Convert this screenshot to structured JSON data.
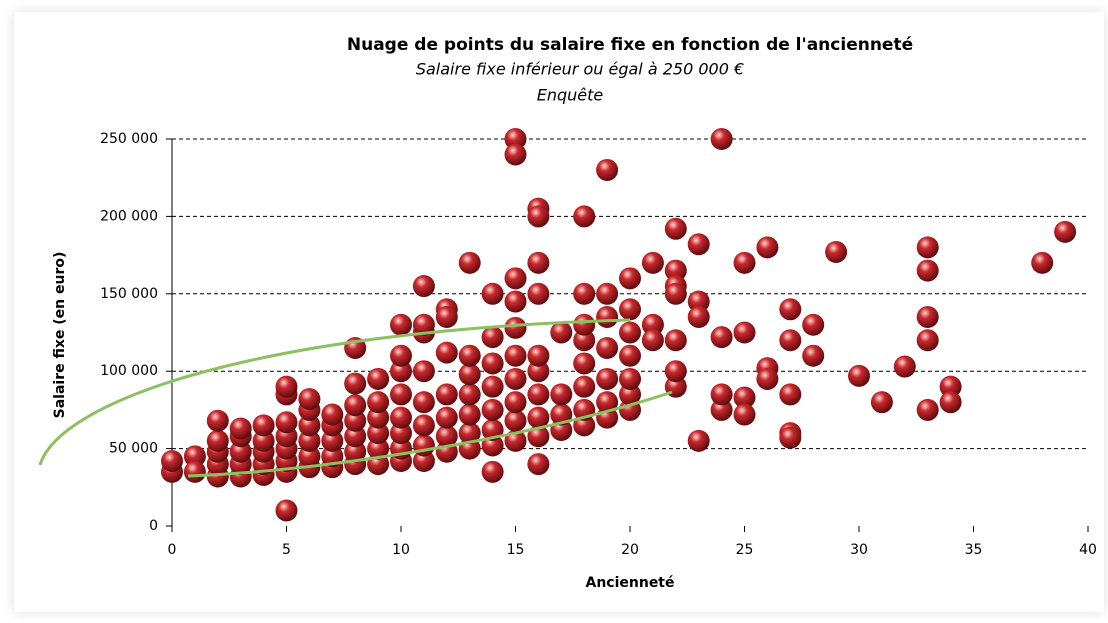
{
  "chart_data": {
    "type": "scatter",
    "title": "Nuage de points du salaire fixe en fonction de l'ancienneté",
    "subtitle": "Salaire fixe inférieur ou égal à 250 000 €",
    "subtitle2": "Enquête",
    "x_label": "Ancienneté",
    "y_label": "Salaire  fixe (en euro)",
    "color": "#c8282c",
    "grid": true,
    "xlim": [
      0,
      40
    ],
    "xticks": [
      0,
      5,
      10,
      15,
      20,
      25,
      30,
      35,
      40
    ],
    "ylim": [
      0,
      250000
    ],
    "yticks": [
      0,
      {
        "value": 50000,
        "label": "50 000"
      },
      {
        "value": 100000,
        "label": "100 000"
      },
      {
        "value": 150000,
        "label": "150 000"
      },
      {
        "value": 200000,
        "label": "200 000"
      },
      {
        "value": 250000,
        "label": "250 000"
      }
    ],
    "x": [
      5,
      15,
      15,
      24,
      19,
      16,
      16,
      18,
      22,
      23,
      26,
      29,
      33,
      39,
      38,
      33,
      25,
      21,
      22,
      22,
      22,
      13,
      16,
      15,
      20,
      11,
      14,
      16,
      18,
      19,
      23,
      20,
      12,
      27,
      33,
      28,
      23,
      25,
      24,
      27,
      33,
      28,
      26,
      26,
      30,
      32,
      34,
      34,
      31,
      33,
      27,
      27,
      27,
      25,
      25,
      24,
      24,
      23,
      22,
      22,
      22,
      21,
      21,
      14,
      16,
      0,
      0,
      1,
      1,
      2,
      2,
      2,
      2,
      2,
      3,
      3,
      3,
      3,
      3,
      4,
      4,
      4,
      4,
      4,
      5,
      5,
      5,
      5,
      5,
      5,
      5,
      6,
      6,
      6,
      6,
      6,
      6,
      7,
      7,
      7,
      7,
      7,
      8,
      8,
      8,
      8,
      8,
      8,
      8,
      9,
      9,
      9,
      9,
      9,
      9,
      10,
      10,
      10,
      10,
      10,
      10,
      10,
      10,
      11,
      11,
      11,
      11,
      11,
      11,
      11,
      12,
      12,
      12,
      12,
      12,
      12,
      13,
      13,
      13,
      13,
      13,
      13,
      14,
      14,
      14,
      14,
      14,
      14,
      15,
      15,
      15,
      15,
      15,
      15,
      15,
      16,
      16,
      16,
      16,
      16,
      17,
      17,
      17,
      17,
      18,
      18,
      18,
      18,
      18,
      18,
      19,
      19,
      19,
      19,
      19,
      20,
      20,
      20,
      20,
      20
    ],
    "values": [
      10000,
      250000,
      240000,
      250000,
      230000,
      205000,
      200000,
      200000,
      192000,
      182000,
      180000,
      177000,
      180000,
      190000,
      170000,
      165000,
      170000,
      170000,
      165000,
      155000,
      150000,
      170000,
      170000,
      160000,
      160000,
      155000,
      150000,
      150000,
      150000,
      150000,
      145000,
      140000,
      140000,
      140000,
      135000,
      130000,
      135000,
      125000,
      122000,
      120000,
      120000,
      110000,
      102000,
      95000,
      97000,
      103000,
      90000,
      80000,
      80000,
      75000,
      85000,
      60000,
      57000,
      83000,
      72000,
      75000,
      85000,
      55000,
      90000,
      100000,
      120000,
      130000,
      120000,
      35000,
      40000,
      35000,
      42000,
      45000,
      35000,
      32000,
      40000,
      48000,
      55000,
      68000,
      32000,
      40000,
      48000,
      58000,
      63000,
      33000,
      40000,
      48000,
      55000,
      65000,
      35000,
      42000,
      50000,
      58000,
      67000,
      85000,
      90000,
      38000,
      45000,
      55000,
      65000,
      75000,
      82000,
      38000,
      45000,
      55000,
      65000,
      72000,
      40000,
      48000,
      58000,
      68000,
      78000,
      92000,
      115000,
      40000,
      50000,
      60000,
      70000,
      80000,
      95000,
      42000,
      50000,
      60000,
      70000,
      85000,
      100000,
      110000,
      130000,
      42000,
      52000,
      65000,
      80000,
      100000,
      125000,
      130000,
      48000,
      58000,
      70000,
      85000,
      112000,
      135000,
      50000,
      60000,
      72000,
      85000,
      98000,
      110000,
      52000,
      62000,
      75000,
      90000,
      105000,
      122000,
      55000,
      68000,
      80000,
      95000,
      110000,
      128000,
      145000,
      58000,
      70000,
      85000,
      100000,
      110000,
      62000,
      72000,
      85000,
      125000,
      65000,
      75000,
      90000,
      105000,
      120000,
      130000,
      70000,
      80000,
      95000,
      115000,
      135000,
      75000,
      85000,
      95000,
      110000,
      125000
    ]
  }
}
